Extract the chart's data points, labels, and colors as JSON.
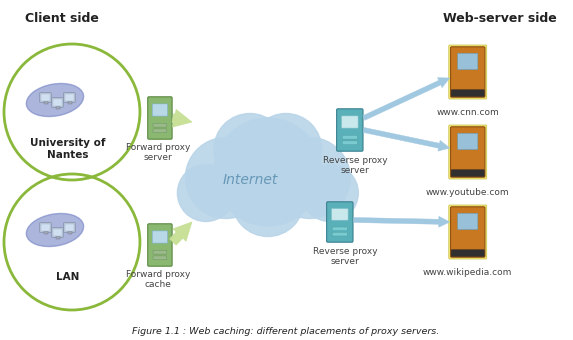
{
  "title": "Figure 1.1 : Web caching: different placements of proxy servers.",
  "background_color": "#ffffff",
  "client_side_label": "Client side",
  "webserver_side_label": "Web-server side",
  "internet_label": "Internet",
  "univ_label": "University of\nNantes",
  "lan_label": "LAN",
  "forward_proxy_server_label": "Forward proxy\nserver",
  "forward_proxy_cache_label": "Forward proxy\ncache",
  "reverse_proxy_server_label1": "Reverse proxy\nserver",
  "reverse_proxy_server_label2": "Reverse proxy\nserver",
  "web_labels": [
    "www.cnn.com",
    "www.youtube.com",
    "www.wikipedia.com"
  ],
  "circle_color": "#8ab83a",
  "cloud_color": "#b8d4e8",
  "arrow_color_green": "#c8e098",
  "arrow_color_blue": "#a0c8e0",
  "text_color_dark": "#222222",
  "text_color_gray": "#444444",
  "server_green_main": "#8ab870",
  "server_green_edge": "#5a8840",
  "server_teal_main": "#5ab0b8",
  "server_teal_edge": "#3a8090",
  "server_orange_main": "#c87820",
  "server_orange_edge": "#905010"
}
